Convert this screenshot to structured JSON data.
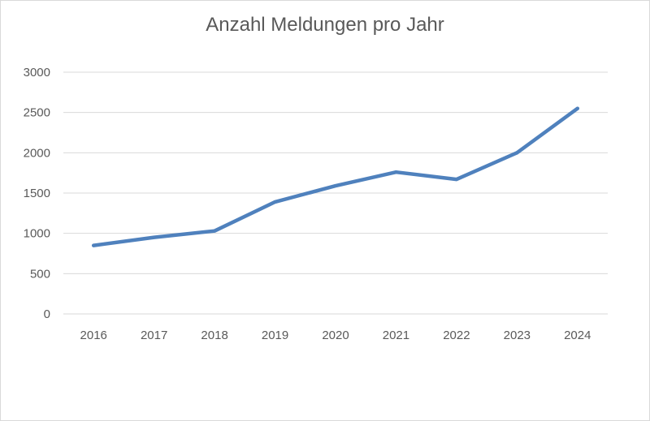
{
  "chart_data": {
    "type": "line",
    "title": "Anzahl Meldungen pro Jahr",
    "xlabel": "",
    "ylabel": "",
    "categories": [
      "2016",
      "2017",
      "2018",
      "2019",
      "2020",
      "2021",
      "2022",
      "2023",
      "2024"
    ],
    "series": [
      {
        "values": [
          850,
          950,
          1030,
          1390,
          1590,
          1760,
          1670,
          2000,
          2550
        ],
        "color": "#4f81bd"
      }
    ],
    "ylim": [
      0,
      3000
    ],
    "yticks": [
      0,
      500,
      1000,
      1500,
      2000,
      2500,
      3000
    ],
    "grid": true,
    "legend": "none"
  }
}
